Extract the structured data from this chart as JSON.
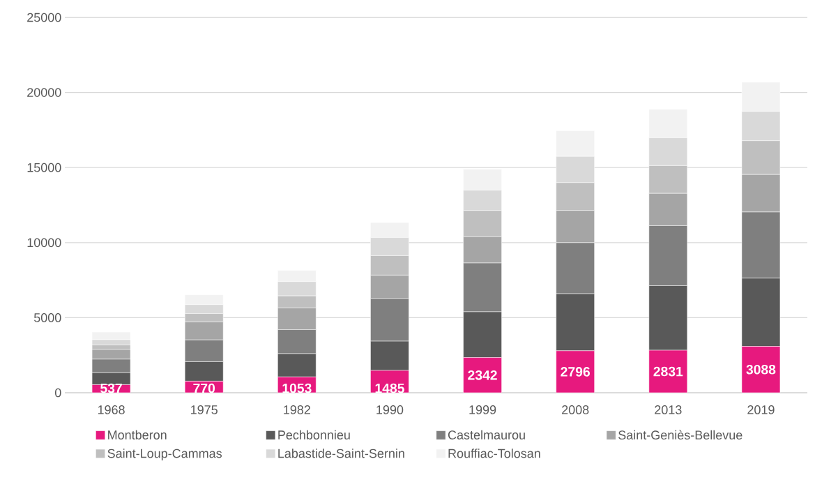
{
  "chart_data": {
    "type": "bar",
    "stacked": true,
    "categories": [
      "1968",
      "1975",
      "1982",
      "1990",
      "1999",
      "2008",
      "2013",
      "2019"
    ],
    "series": [
      {
        "name": "Montberon",
        "color": "#e7197e",
        "values": [
          537,
          770,
          1053,
          1485,
          2342,
          2796,
          2831,
          3088
        ],
        "value_labels": [
          "537",
          "770",
          "1053",
          "1485",
          "2342",
          "2796",
          "2831",
          "3088"
        ]
      },
      {
        "name": "Pechbonnieu",
        "color": "#595959",
        "values": [
          800,
          1300,
          1550,
          1950,
          3050,
          3800,
          4300,
          4550
        ]
      },
      {
        "name": "Castelmaurou",
        "color": "#7f7f7f",
        "values": [
          900,
          1450,
          1600,
          2850,
          3250,
          3400,
          4000,
          4400
        ]
      },
      {
        "name": "Saint-Geniès-Bellevue",
        "color": "#a5a5a5",
        "values": [
          650,
          1200,
          1450,
          1550,
          1750,
          2150,
          2150,
          2500
        ]
      },
      {
        "name": "Saint-Loup-Cammas",
        "color": "#bfbfbf",
        "values": [
          300,
          550,
          800,
          1300,
          1750,
          1850,
          1850,
          2250
        ]
      },
      {
        "name": "Labastide-Saint-Sernin",
        "color": "#d9d9d9",
        "values": [
          350,
          600,
          950,
          1200,
          1350,
          1750,
          1850,
          1950
        ]
      },
      {
        "name": "Rouffiac-Tolosan",
        "color": "#f2f2f2",
        "values": [
          500,
          650,
          750,
          1000,
          1400,
          1700,
          1900,
          1950
        ]
      }
    ],
    "ylim": [
      0,
      25000
    ],
    "yticks": [
      0,
      5000,
      10000,
      15000,
      20000,
      25000
    ],
    "grid": "y",
    "legend": "bottom"
  }
}
